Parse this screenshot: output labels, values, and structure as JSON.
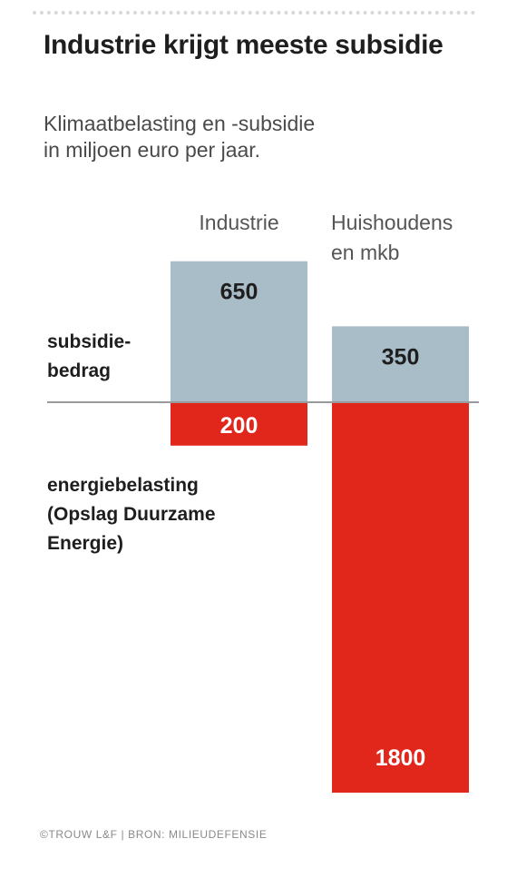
{
  "title": "Industrie krijgt meeste subsidie",
  "subtitle_lines": [
    "Klimaatbelasting en -subsidie",
    "in miljoen euro per jaar."
  ],
  "footer": "©TROUW L&F | BRON: MILIEUDEFENSIE",
  "colors": {
    "subsidy": "#a9bdc8",
    "tax": "#e1261c",
    "baseline": "#9a9a9a",
    "text": "#1e1e1e"
  },
  "chart_data": {
    "type": "bar",
    "categories": [
      [
        "Industrie"
      ],
      [
        "Huishoudens",
        "en mkb"
      ]
    ],
    "series": [
      {
        "name": [
          "subsidie-",
          "bedrag"
        ],
        "direction": "up",
        "values": [
          650,
          350
        ]
      },
      {
        "name": [
          "energiebelasting",
          "(Opslag Duurzame",
          "Energie)"
        ],
        "direction": "down",
        "values": [
          200,
          1800
        ]
      }
    ]
  }
}
